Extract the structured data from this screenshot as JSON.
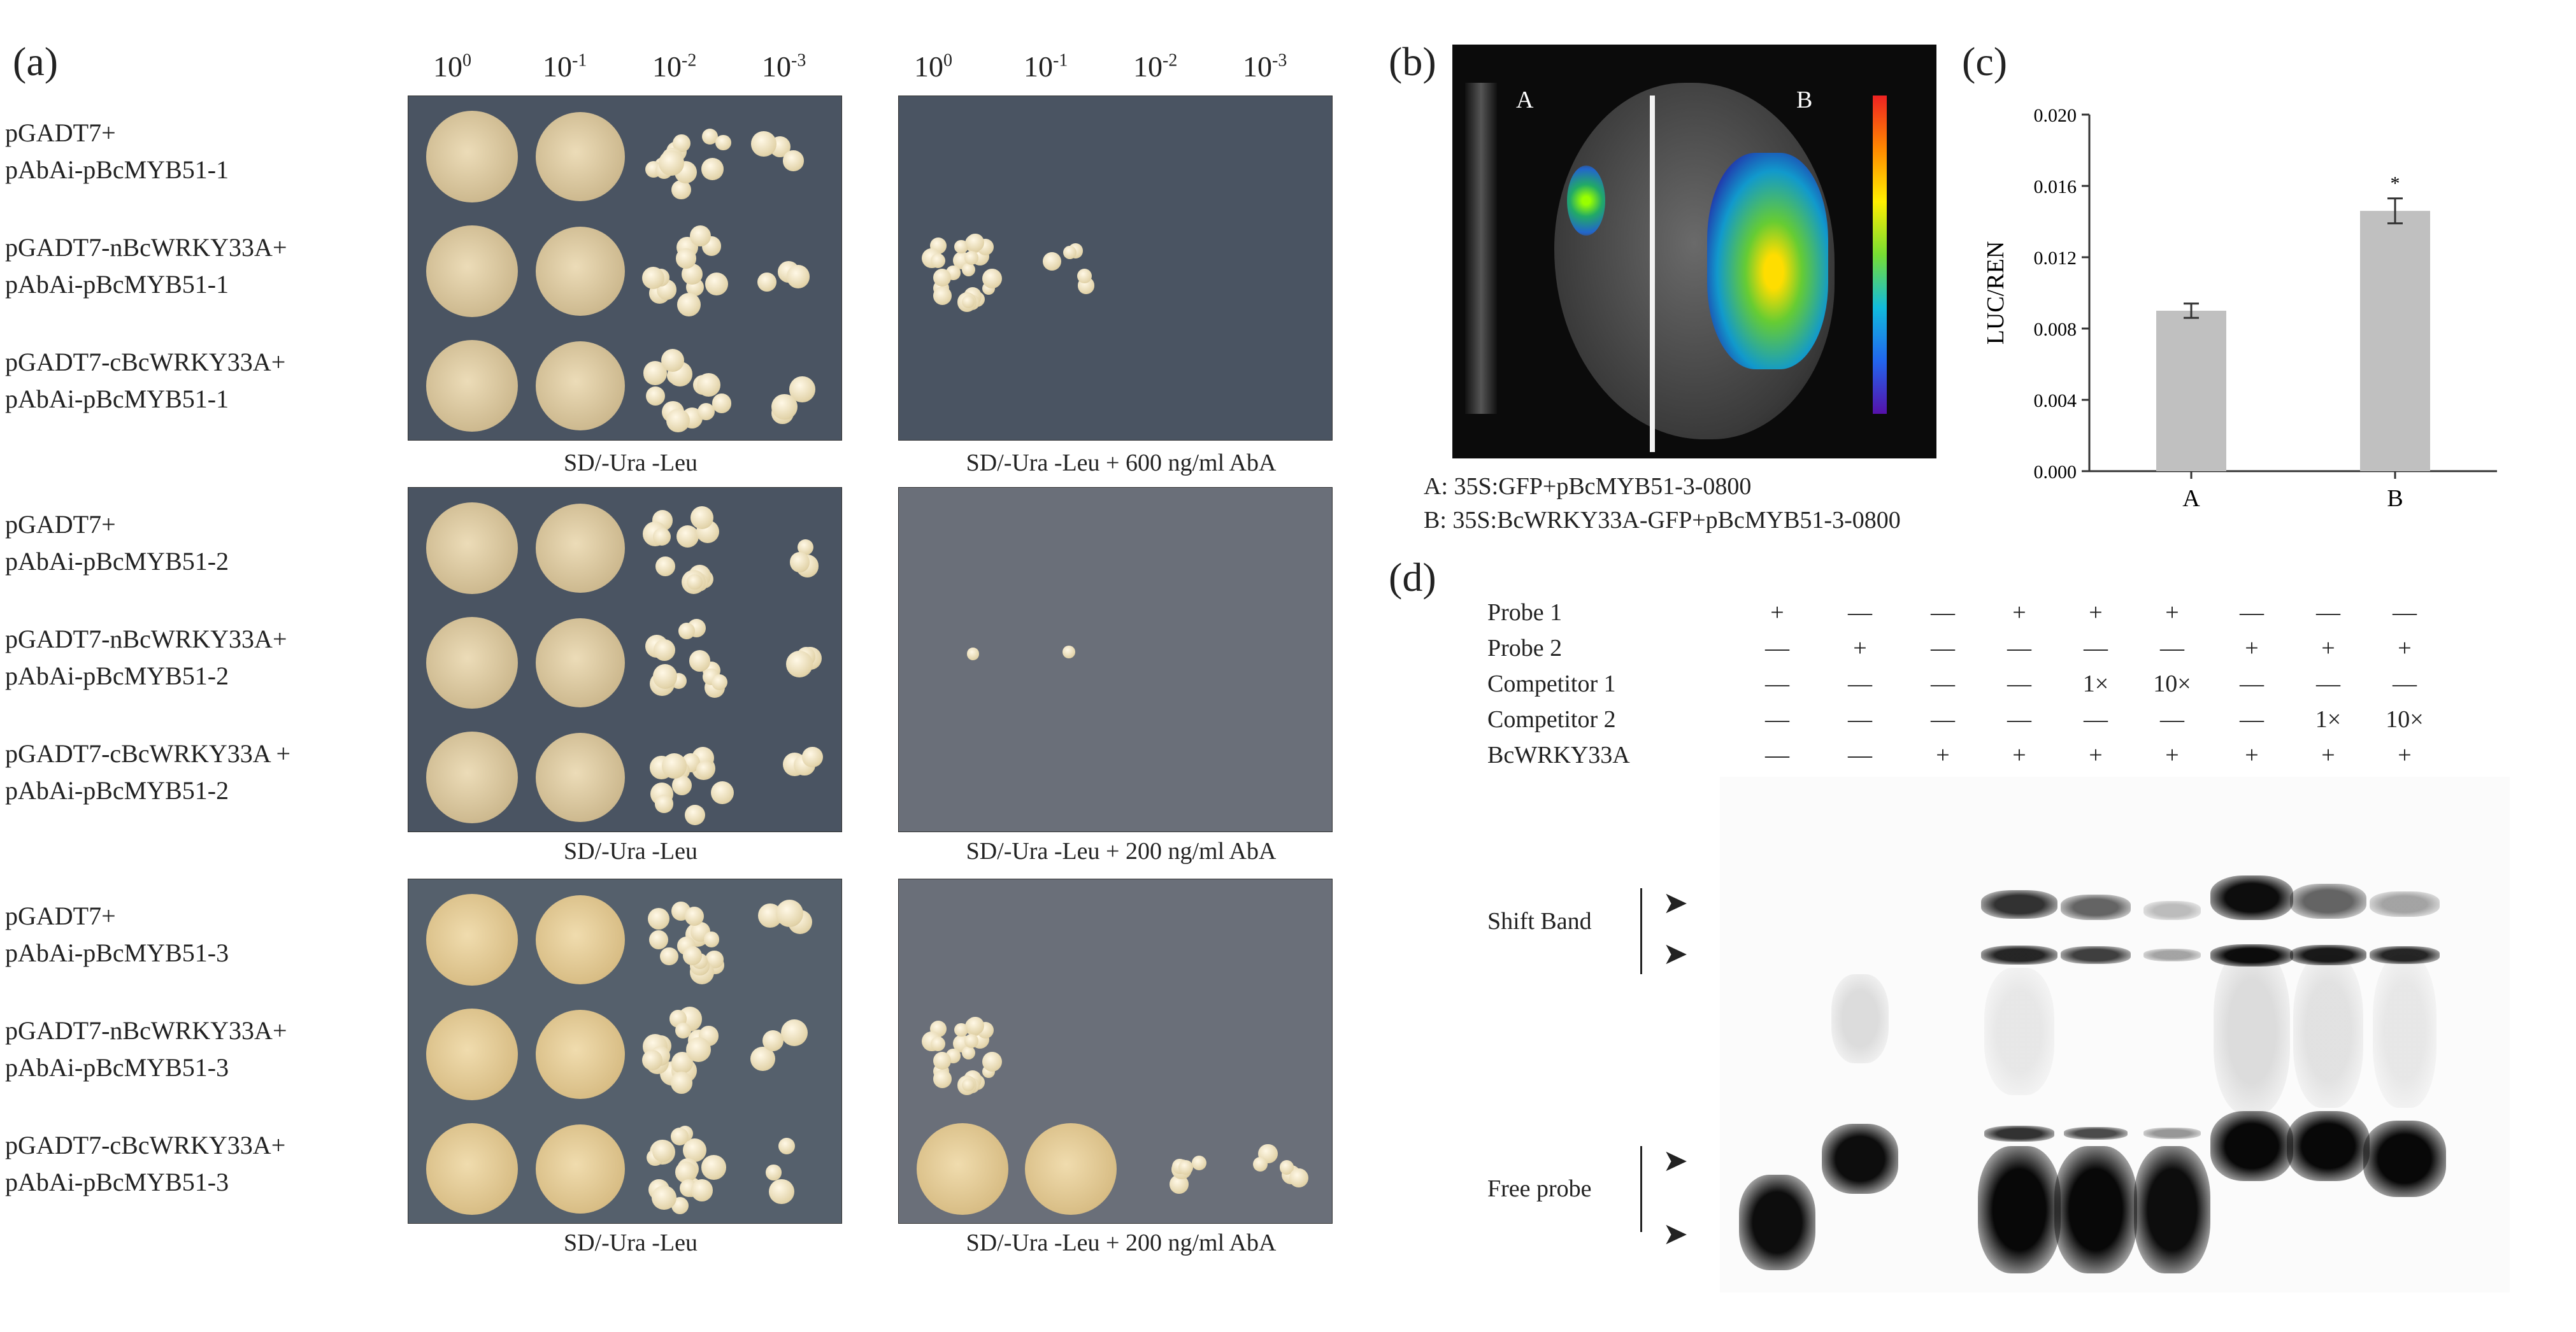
{
  "panels": {
    "a": "(a)",
    "b": "(b)",
    "c": "(c)",
    "d": "(d)"
  },
  "panel_a": {
    "dilutions_left": [
      {
        "base": "10",
        "exp": "0"
      },
      {
        "base": "10",
        "exp": "-1"
      },
      {
        "base": "10",
        "exp": "-2"
      },
      {
        "base": "10",
        "exp": "-3"
      }
    ],
    "dilutions_right": [
      {
        "base": "10",
        "exp": "0"
      },
      {
        "base": "10",
        "exp": "-1"
      },
      {
        "base": "10",
        "exp": "-2"
      },
      {
        "base": "10",
        "exp": "-3"
      }
    ],
    "groups": [
      {
        "rows": [
          {
            "line1": "pGADT7+",
            "line2": "pAbAi-pBcMYB51-1"
          },
          {
            "line1": "pGADT7-nBcWRKY33A+",
            "line2": "pAbAi-pBcMYB51-1"
          },
          {
            "line1": "pGADT7-cBcWRKY33A+",
            "line2": "pAbAi-pBcMYB51-1"
          }
        ],
        "medium_left": "SD/-Ura -Leu",
        "medium_right": "SD/-Ura -Leu + 600 ng/ml AbA"
      },
      {
        "rows": [
          {
            "line1": "pGADT7+",
            "line2": "pAbAi-pBcMYB51-2"
          },
          {
            "line1": "pGADT7-nBcWRKY33A+",
            "line2": "pAbAi-pBcMYB51-2"
          },
          {
            "line1": "pGADT7-cBcWRKY33A +",
            "line2": "pAbAi-pBcMYB51-2"
          }
        ],
        "medium_left": "SD/-Ura -Leu",
        "medium_right": "SD/-Ura -Leu + 200 ng/ml AbA"
      },
      {
        "rows": [
          {
            "line1": "pGADT7+",
            "line2": "pAbAi-pBcMYB51-3"
          },
          {
            "line1": "pGADT7-nBcWRKY33A+",
            "line2": "pAbAi-pBcMYB51-3"
          },
          {
            "line1": "pGADT7-cBcWRKY33A+",
            "line2": "pAbAi-pBcMYB51-3"
          }
        ],
        "medium_left": "SD/-Ura -Leu",
        "medium_right": "SD/-Ura -Leu + 200 ng/ml AbA"
      }
    ]
  },
  "panel_b": {
    "leaf_label_left": "A",
    "leaf_label_right": "B",
    "caption_a": "A: 35S:GFP+pBcMYB51-3-0800",
    "caption_b": "B: 35S:BcWRKY33A-GFP+pBcMYB51-3-0800"
  },
  "chart_data": {
    "type": "bar",
    "categories": [
      "A",
      "B"
    ],
    "values": [
      0.009,
      0.0146
    ],
    "errors": [
      0.0004,
      0.0007
    ],
    "significance": [
      "",
      "*"
    ],
    "title": "",
    "xlabel": "",
    "ylabel": "LUC/REN",
    "ylim": [
      0,
      0.02
    ],
    "yticks": [
      "0.000",
      "0.004",
      "0.008",
      "0.012",
      "0.016",
      "0.020"
    ],
    "bar_color": "#c0c0c0",
    "grid": false
  },
  "panel_d": {
    "row_labels": [
      "Probe 1",
      "Probe 2",
      "Competitor 1",
      "Competitor 2",
      "BcWRKY33A"
    ],
    "lanes": [
      [
        "+",
        "—",
        "—",
        "—",
        "—"
      ],
      [
        "—",
        "+",
        "—",
        "—",
        "—"
      ],
      [
        "—",
        "—",
        "—",
        "—",
        "+"
      ],
      [
        "+",
        "—",
        "—",
        "—",
        "+"
      ],
      [
        "+",
        "—",
        "1×",
        "—",
        "+"
      ],
      [
        "+",
        "—",
        "10×",
        "—",
        "+"
      ],
      [
        "—",
        "+",
        "—",
        "—",
        "+"
      ],
      [
        "—",
        "+",
        "—",
        "1×",
        "+"
      ],
      [
        "—",
        "+",
        "—",
        "10×",
        "+"
      ]
    ],
    "shift_label": "Shift Band",
    "free_label": "Free probe",
    "arrow_glyph": "➤"
  }
}
